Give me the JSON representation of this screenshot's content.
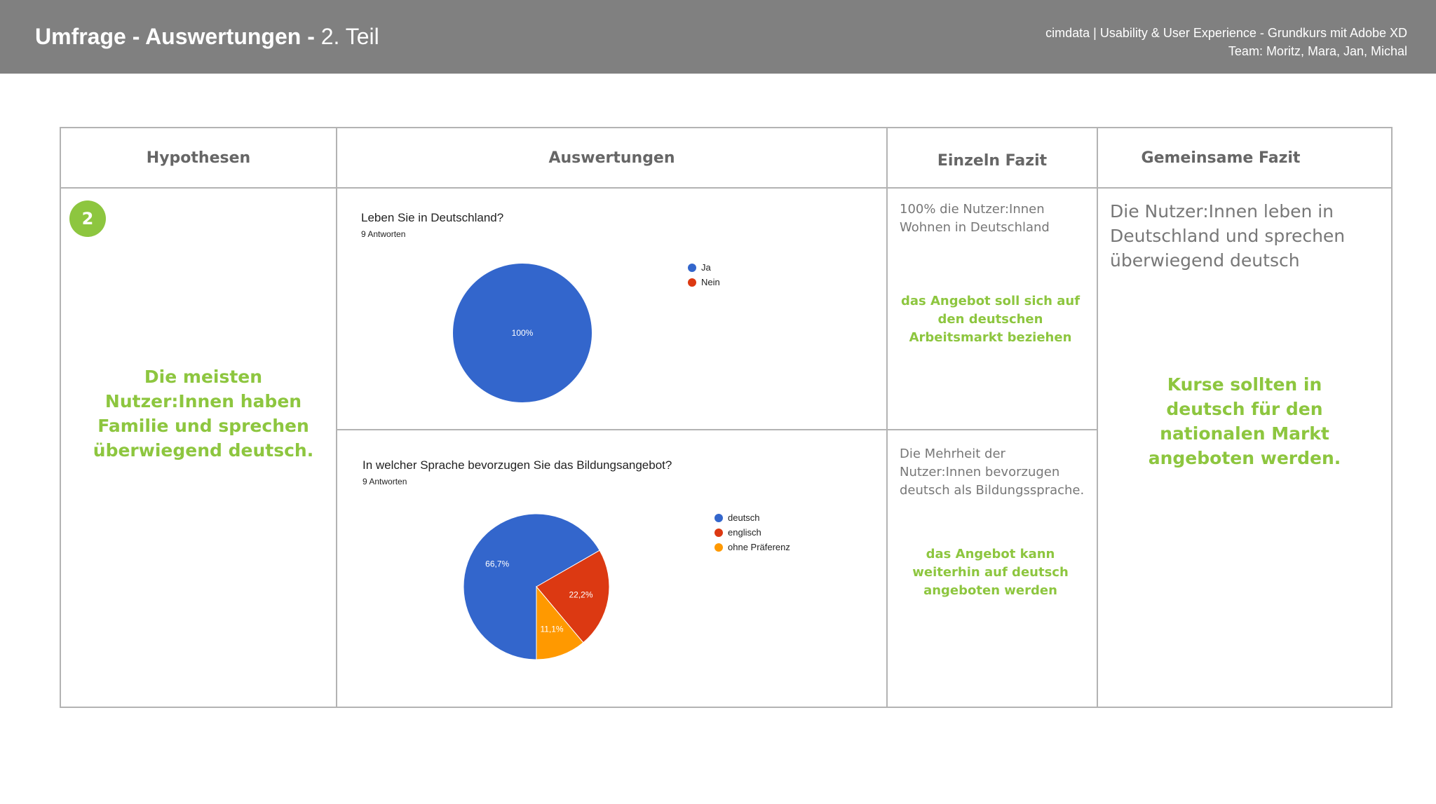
{
  "header": {
    "title_bold": "Umfrage - Auswertungen -",
    "title_normal": "2. Teil",
    "credit_line1": "cimdata | Usability & User Experience - Grundkurs mit Adobe XD",
    "credit_line2": "Team: Moritz, Mara, Jan, Michal"
  },
  "table": {
    "col_hypothesen": "Hypothesen",
    "col_auswertungen": "Auswertungen",
    "col_einzeln": "Einzeln Fazit",
    "col_gemeinsam": "Gemeinsame Fazit",
    "badge": "2",
    "hypothese": "Die meisten Nutzer:Innen haben Familie und sprechen überwiegend deutsch.",
    "fazit1_text": "100% die Nutzer:Innen Wohnen in Deutschland",
    "fazit1_green": "das Angebot soll sich auf den deutschen Arbeitsmarkt beziehen",
    "fazit2_text": "Die Mehrheit der Nutzer:Innen bevorzugen deutsch als Bildungssprache.",
    "fazit2_green": "das Angebot kann weiterhin auf deutsch angeboten werden",
    "gemeinsam_text": "Die Nutzer:Innen leben in Deutschland und sprechen überwiegend deutsch",
    "gemeinsam_green": "Kurse sollten in deutsch für den nationalen Markt angeboten werden."
  },
  "chart_data": [
    {
      "type": "pie",
      "title": "Leben Sie in Deutschland?",
      "subtitle": "9 Antworten",
      "categories": [
        "Ja",
        "Nein"
      ],
      "values": [
        100,
        0
      ],
      "labels": [
        "100%",
        ""
      ],
      "colors": [
        "#3366cc",
        "#dc3912"
      ],
      "legend": "right"
    },
    {
      "type": "pie",
      "title": "In welcher Sprache bevorzugen Sie das Bildungsangebot?",
      "subtitle": "9 Antworten",
      "categories": [
        "deutsch",
        "englisch",
        "ohne Präferenz"
      ],
      "values": [
        66.7,
        22.2,
        11.1
      ],
      "labels": [
        "66,7%",
        "22,2%",
        "11,1%"
      ],
      "colors": [
        "#3366cc",
        "#dc3912",
        "#ff9900"
      ],
      "legend": "right"
    }
  ]
}
